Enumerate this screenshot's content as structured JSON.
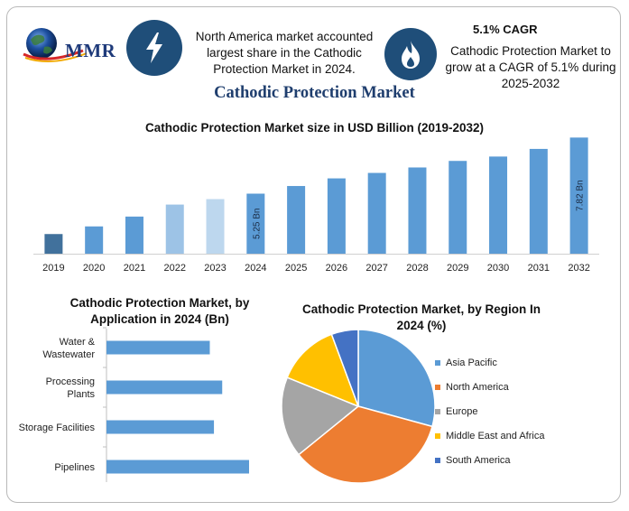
{
  "header": {
    "logo_text": "MMR",
    "left_text": "North America market accounted largest share in the Cathodic Protection Market in 2024.",
    "cagr_title": "5.1% CAGR",
    "cagr_text": "Cathodic Protection Market to grow at a CAGR of 5.1% during 2025-2032",
    "bolt_icon": "lightning-bolt-icon",
    "flame_icon": "flame-icon"
  },
  "main_title": "Cathodic Protection Market",
  "colors": {
    "dark_navy": "#1f4e79",
    "bar_blue": "#5b9bd5",
    "bar_dark": "#41719c",
    "bar_light": "#9dc3e6",
    "bar_lighter": "#bdd7ee",
    "pie_asia": "#5b9bd5",
    "pie_na": "#ed7d31",
    "pie_europe": "#a5a5a5",
    "pie_mea": "#ffc000",
    "pie_sa": "#4472c4"
  },
  "chart_data": [
    {
      "type": "bar",
      "title": "Cathodic Protection Market size in USD Billion (2019-2032)",
      "categories": [
        "2019",
        "2020",
        "2021",
        "2022",
        "2023",
        "2024",
        "2025",
        "2026",
        "2027",
        "2028",
        "2029",
        "2030",
        "2031",
        "2032"
      ],
      "values": [
        3.4,
        3.75,
        4.2,
        4.75,
        5.0,
        5.25,
        5.6,
        5.95,
        6.2,
        6.45,
        6.75,
        6.95,
        7.3,
        7.82
      ],
      "data_labels": [
        {
          "category": "2024",
          "text": "5.25 Bn"
        },
        {
          "category": "2032",
          "text": "7.82 Bn"
        }
      ],
      "ylim": [
        2.5,
        8.0
      ]
    },
    {
      "type": "bar",
      "orientation": "horizontal",
      "title": "Cathodic Protection Market, by Application in 2024 (Bn)",
      "categories": [
        "Water & Wastewater",
        "Processing Plants",
        "Storage Facilities",
        "Pipelines"
      ],
      "category_lines": [
        [
          "Water &",
          "Wastewater"
        ],
        [
          "Processing",
          "Plants"
        ],
        [
          "Storage Facilities"
        ],
        [
          "Pipelines"
        ]
      ],
      "values": [
        1.0,
        1.12,
        1.04,
        1.38
      ]
    },
    {
      "type": "pie",
      "title": "Cathodic Protection Market, by Region In 2024 (%)",
      "labels": [
        "Asia Pacific",
        "North America",
        "Europe",
        "Middle East and Africa",
        "South America"
      ],
      "values": [
        31,
        37,
        18,
        14,
        6
      ],
      "legend": "right"
    }
  ]
}
